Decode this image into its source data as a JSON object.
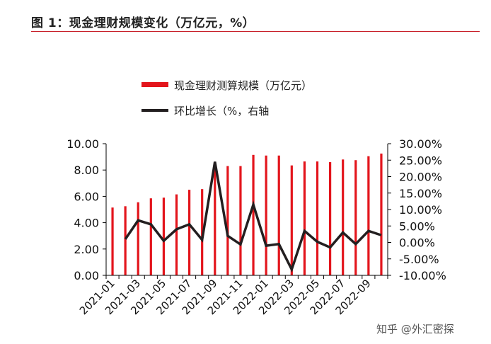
{
  "figure_title": "图 1：现金理财规模变化（万亿元，%）",
  "watermark": "知乎 @外汇密探",
  "colors": {
    "bar": "#e3151c",
    "line": "#231f20",
    "axis": "#000000",
    "title_rule": "#c8202a"
  },
  "chart_data": {
    "type": "bar+line",
    "legend_position": "top-center",
    "grid": false,
    "y_left": {
      "ticks": [
        "10.00",
        "8.00",
        "6.00",
        "4.00",
        "2.00",
        "0.00"
      ],
      "range": [
        0,
        10
      ]
    },
    "y_right": {
      "ticks": [
        "30.00%",
        "25.00%",
        "20.00%",
        "15.00%",
        "10.00%",
        "5.00%",
        "0.00%",
        "-5.00%",
        "-10.00%"
      ],
      "range": [
        -10,
        30
      ]
    },
    "x_tick_labels": [
      "2021-01",
      "2021-03",
      "2021-05",
      "2021-07",
      "2021-09",
      "2021-11",
      "2022-01",
      "2022-03",
      "2022-05",
      "2022-07",
      "2022-09"
    ],
    "categories": [
      "2021-01",
      "2021-02",
      "2021-03",
      "2021-04",
      "2021-05",
      "2021-06",
      "2021-07",
      "2021-08",
      "2021-09",
      "2021-10",
      "2021-11",
      "2021-12",
      "2022-01",
      "2022-02",
      "2022-03",
      "2022-04",
      "2022-05",
      "2022-06",
      "2022-07",
      "2022-08",
      "2022-09",
      "2022-10"
    ],
    "series": [
      {
        "name": "现金理财测算规模（万亿元）",
        "type": "bar",
        "axis": "left",
        "values": [
          5.15,
          5.25,
          5.55,
          5.85,
          5.9,
          6.15,
          6.5,
          6.55,
          8.05,
          8.3,
          8.3,
          9.15,
          9.1,
          9.1,
          8.35,
          8.65,
          8.65,
          8.6,
          8.8,
          8.75,
          9.05,
          9.25
        ]
      },
      {
        "name": "环比增长（%，右轴",
        "type": "line",
        "axis": "right",
        "values": [
          null,
          1.0,
          6.7,
          5.5,
          0.5,
          4.0,
          5.5,
          0.8,
          24.5,
          2.0,
          -0.6,
          11.5,
          -1.0,
          -0.5,
          -8.2,
          3.5,
          0.2,
          -1.5,
          3.0,
          -0.5,
          3.5,
          2.2
        ]
      }
    ]
  }
}
